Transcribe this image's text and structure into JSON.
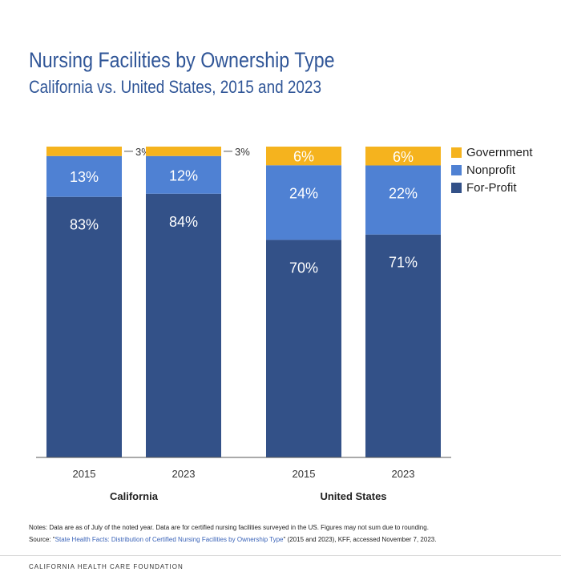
{
  "title": "Nursing Facilities by Ownership Type",
  "subtitle": "California vs. United States, 2015 and 2023",
  "colors": {
    "government": "#f5b31e",
    "nonprofit": "#4f81d3",
    "forprofit": "#335188",
    "title": "#2f5597"
  },
  "chart_data": {
    "type": "bar",
    "stacked": true,
    "normalized_percent": true,
    "categories": [
      "2015",
      "2023",
      "2015",
      "2023"
    ],
    "groups": [
      {
        "label": "California",
        "categories": [
          "2015",
          "2023"
        ]
      },
      {
        "label": "United States",
        "categories": [
          "2015",
          "2023"
        ]
      }
    ],
    "series": [
      {
        "name": "For-Profit",
        "values": [
          83,
          84,
          70,
          71
        ]
      },
      {
        "name": "Nonprofit",
        "values": [
          13,
          12,
          24,
          22
        ]
      },
      {
        "name": "Government",
        "values": [
          3,
          3,
          6,
          6
        ]
      }
    ],
    "legend": {
      "position": "right",
      "order": [
        "Government",
        "Nonprofit",
        "For-Profit"
      ]
    },
    "ylim": [
      0,
      100
    ],
    "grid": false
  },
  "legend": {
    "government": "Government",
    "nonprofit": "Nonprofit",
    "forprofit": "For-Profit"
  },
  "notes": {
    "line1": "Notes: Data are as of July of the noted year. Data are for certified nursing facilities surveyed in the US. Figures may not sum due to rounding.",
    "source_prefix": "Source: \"",
    "source_link": "State Health Facts: Distribution of Certified Nursing Facilities by Ownership Type",
    "source_suffix": "\" (2015 and 2023), KFF, accessed November 7, 2023."
  },
  "footer": "CALIFORNIA HEALTH CARE FOUNDATION"
}
